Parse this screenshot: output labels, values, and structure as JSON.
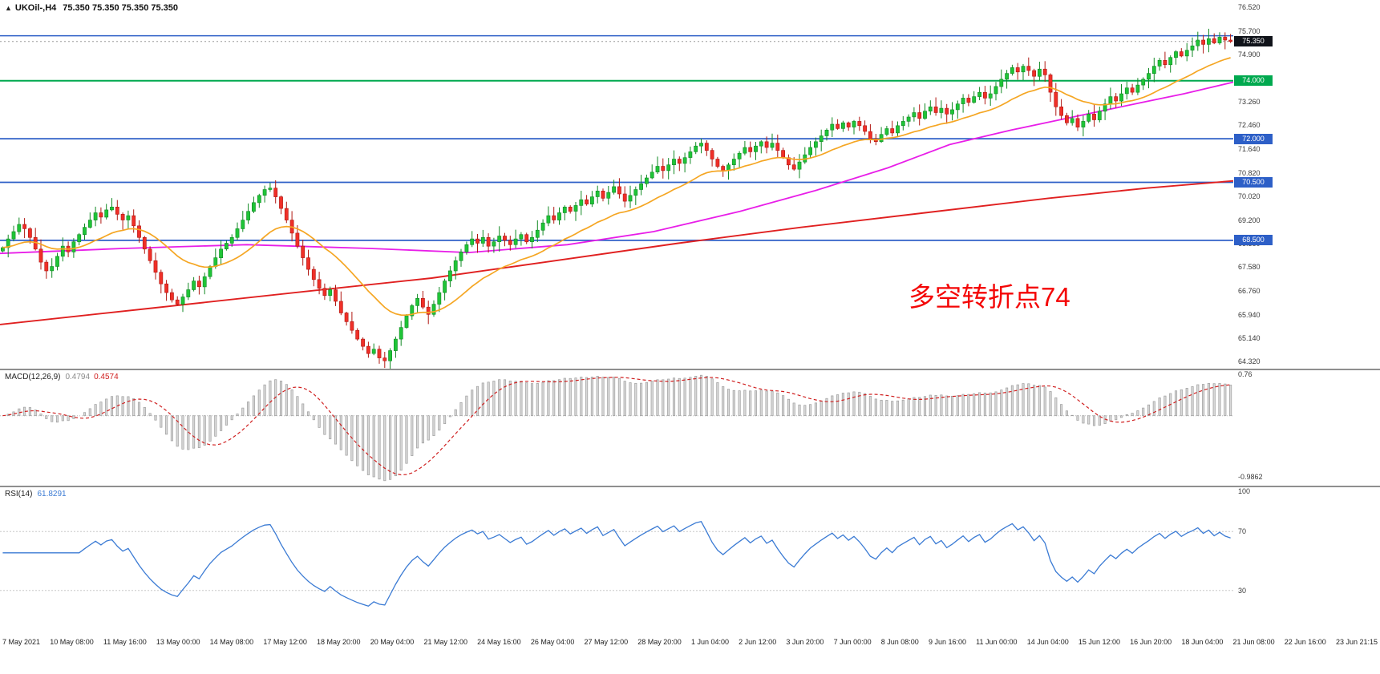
{
  "header": {
    "symbol": "UKOil-,H4",
    "ohlc": "75.350 75.350 75.350 75.350"
  },
  "annotation": {
    "text": "多空转折点74",
    "color": "#f40606"
  },
  "colors": {
    "up": "#1fc437",
    "up_stroke": "#128a24",
    "down": "#ef2f28",
    "down_stroke": "#b01812",
    "ma_orange": "#f5a623",
    "ma_magenta": "#e81ee8",
    "ma_red": "#e02020",
    "level_blue": "#2d5fc7",
    "level_green": "#00a94f",
    "macd_hist_fill": "#d8d8d8",
    "macd_hist_stroke": "#9e9e9e",
    "macd_signal": "#d02020",
    "rsi": "#3b7bd4",
    "current_badge_bg": "#10131a"
  },
  "price_axis": {
    "min": 64.08,
    "max": 76.78,
    "ticks": [
      "76.520",
      "75.700",
      "74.900",
      "74.080",
      "73.260",
      "72.460",
      "71.640",
      "70.820",
      "70.020",
      "69.200",
      "68.380",
      "67.580",
      "66.760",
      "65.940",
      "65.140",
      "64.320"
    ]
  },
  "price_badge": {
    "value": "75.350",
    "price": 75.35
  },
  "levels": [
    {
      "price": 75.55,
      "color": "#2d5fc7",
      "label": null,
      "width": 1.5
    },
    {
      "price": 74.0,
      "color": "#00a94f",
      "label": "74.000",
      "width": 2.0
    },
    {
      "price": 72.0,
      "color": "#2d5fc7",
      "label": "72.000",
      "width": 1.8
    },
    {
      "price": 70.5,
      "color": "#2d5fc7",
      "label": "70.500",
      "width": 1.8
    },
    {
      "price": 68.5,
      "color": "#2d5fc7",
      "label": "68.500",
      "width": 1.8
    }
  ],
  "macd_panel": {
    "title": "MACD(12,26,9)",
    "value_main": "0.4794",
    "value_signal": "0.4574",
    "axis": [
      "0.76",
      "-0.9862"
    ],
    "params": {
      "fast": 12,
      "slow": 26,
      "signal": 9
    }
  },
  "rsi_panel": {
    "title": "RSI(14)",
    "value": "61.8291",
    "period": 14,
    "levels": [
      70,
      30
    ],
    "axis": [
      "100",
      "70",
      "30"
    ]
  },
  "time_axis": [
    "7 May 2021",
    "10 May 08:00",
    "11 May 16:00",
    "13 May 00:00",
    "14 May 08:00",
    "17 May 12:00",
    "18 May 20:00",
    "20 May 04:00",
    "21 May 12:00",
    "24 May 16:00",
    "26 May 04:00",
    "27 May 12:00",
    "28 May 20:00",
    "1 Jun 04:00",
    "2 Jun 12:00",
    "3 Jun 20:00",
    "7 Jun 00:00",
    "8 Jun 08:00",
    "9 Jun 16:00",
    "11 Jun 00:00",
    "14 Jun 04:00",
    "15 Jun 12:00",
    "16 Jun 20:00",
    "18 Jun 04:00",
    "21 Jun 08:00",
    "22 Jun 16:00",
    "23 Jun 21:15"
  ],
  "chart_data": {
    "type": "candlestick",
    "symbol": "UKOil",
    "timeframe": "H4",
    "title": "UKOil-,H4 Brent crude candlestick chart with MACD(12,26,9) and RSI(14)",
    "x_range": [
      "7 May 2021",
      "23 Jun 2021 21:15"
    ],
    "y_range": [
      64.32,
      76.52
    ],
    "last_price": 75.35,
    "grid": false,
    "note_opens_equal_previous_close": true,
    "closes": [
      68.25,
      68.55,
      68.8,
      69.05,
      68.9,
      68.6,
      68.2,
      67.75,
      67.45,
      67.6,
      67.95,
      68.3,
      68.1,
      68.45,
      68.7,
      68.95,
      69.2,
      69.45,
      69.3,
      69.55,
      69.65,
      69.4,
      69.2,
      69.35,
      69.0,
      68.6,
      68.2,
      67.8,
      67.4,
      67.0,
      66.7,
      66.45,
      66.3,
      66.55,
      66.8,
      67.1,
      66.9,
      67.25,
      67.6,
      67.9,
      68.2,
      68.4,
      68.6,
      68.9,
      69.2,
      69.5,
      69.8,
      70.05,
      70.25,
      70.3,
      70.0,
      69.6,
      69.2,
      68.75,
      68.3,
      67.9,
      67.5,
      67.15,
      66.85,
      66.6,
      66.8,
      66.4,
      66.0,
      65.7,
      65.4,
      65.1,
      64.85,
      64.6,
      64.75,
      64.45,
      64.35,
      64.7,
      65.1,
      65.5,
      65.9,
      66.25,
      66.5,
      66.2,
      65.95,
      66.3,
      66.7,
      67.1,
      67.45,
      67.8,
      68.1,
      68.35,
      68.55,
      68.4,
      68.6,
      68.3,
      68.45,
      68.65,
      68.5,
      68.35,
      68.55,
      68.7,
      68.45,
      68.6,
      68.85,
      69.1,
      69.35,
      69.2,
      69.45,
      69.65,
      69.5,
      69.7,
      69.9,
      69.75,
      70.0,
      70.2,
      69.95,
      70.15,
      70.35,
      70.1,
      69.85,
      70.05,
      70.25,
      70.45,
      70.65,
      70.85,
      71.05,
      70.9,
      71.1,
      71.3,
      71.15,
      71.35,
      71.55,
      71.75,
      71.85,
      71.6,
      71.3,
      71.05,
      70.9,
      71.1,
      71.3,
      71.5,
      71.7,
      71.55,
      71.75,
      71.9,
      71.7,
      71.85,
      71.6,
      71.35,
      71.1,
      70.95,
      71.2,
      71.45,
      71.7,
      71.9,
      72.1,
      72.3,
      72.5,
      72.35,
      72.55,
      72.4,
      72.6,
      72.45,
      72.25,
      72.0,
      71.9,
      72.15,
      72.35,
      72.2,
      72.45,
      72.6,
      72.75,
      72.9,
      72.7,
      72.95,
      73.1,
      72.9,
      73.05,
      72.85,
      73.0,
      73.2,
      73.4,
      73.25,
      73.45,
      73.6,
      73.4,
      73.55,
      73.8,
      74.05,
      74.25,
      74.45,
      74.3,
      74.5,
      74.35,
      74.15,
      74.4,
      74.2,
      73.6,
      73.1,
      72.8,
      72.55,
      72.7,
      72.4,
      72.6,
      72.85,
      72.65,
      72.95,
      73.2,
      73.45,
      73.3,
      73.55,
      73.75,
      73.6,
      73.85,
      74.05,
      74.25,
      74.5,
      74.7,
      74.55,
      74.8,
      75.0,
      74.85,
      75.05,
      75.2,
      75.4,
      75.25,
      75.45,
      75.3,
      75.5,
      75.4,
      75.35
    ],
    "ema_orange_period": 21,
    "ma_magenta": {
      "name": "medium-term moving average",
      "points": [
        [
          0,
          68.05
        ],
        [
          0.1,
          68.22
        ],
        [
          0.2,
          68.35
        ],
        [
          0.3,
          68.22
        ],
        [
          0.38,
          68.08
        ],
        [
          0.46,
          68.35
        ],
        [
          0.53,
          68.8
        ],
        [
          0.6,
          69.5
        ],
        [
          0.66,
          70.2
        ],
        [
          0.72,
          71.0
        ],
        [
          0.77,
          71.8
        ],
        [
          0.82,
          72.3
        ],
        [
          0.87,
          72.75
        ],
        [
          0.92,
          73.2
        ],
        [
          0.96,
          73.55
        ],
        [
          1,
          73.95
        ]
      ]
    },
    "ma_red": {
      "name": "long-term moving average",
      "points": [
        [
          0,
          65.6
        ],
        [
          0.12,
          66.15
        ],
        [
          0.25,
          66.75
        ],
        [
          0.35,
          67.2
        ],
        [
          0.45,
          67.8
        ],
        [
          0.55,
          68.4
        ],
        [
          0.65,
          68.95
        ],
        [
          0.75,
          69.45
        ],
        [
          0.85,
          69.95
        ],
        [
          0.93,
          70.3
        ],
        [
          1,
          70.55
        ]
      ]
    }
  }
}
